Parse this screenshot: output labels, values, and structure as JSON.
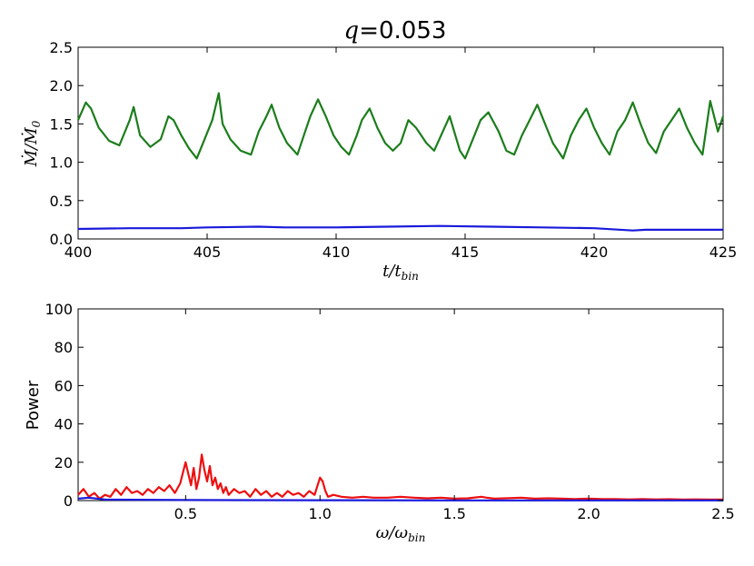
{
  "title": {
    "var": "q",
    "eq": "=",
    "value": "0.053"
  },
  "colors": {
    "green": "#1b7d1b",
    "blue": "#1a1adb",
    "red": "#ee0f0f"
  },
  "chart_data": [
    {
      "type": "line",
      "xlabel": {
        "base": "t/t",
        "sub": "bin"
      },
      "ylabel": {
        "base": "Ṁ/Ṁ",
        "sub": "0"
      },
      "xlim": [
        400,
        425
      ],
      "ylim": [
        0.0,
        2.5
      ],
      "xticks": [
        "400",
        "405",
        "410",
        "415",
        "420",
        "425"
      ],
      "yticks": [
        "0.0",
        "0.5",
        "1.0",
        "1.5",
        "2.0",
        "2.5"
      ],
      "series": [
        {
          "color": "green",
          "x": [
            400,
            400.3,
            400.5,
            400.8,
            401.2,
            401.6,
            402.0,
            402.15,
            402.4,
            402.8,
            403.2,
            403.5,
            403.7,
            404.0,
            404.3,
            404.6,
            404.9,
            405.2,
            405.45,
            405.6,
            405.9,
            406.3,
            406.7,
            407.0,
            407.3,
            407.5,
            407.8,
            408.1,
            408.5,
            408.8,
            409.0,
            409.3,
            409.6,
            409.9,
            410.2,
            410.5,
            410.8,
            411.0,
            411.3,
            411.6,
            411.9,
            412.2,
            412.5,
            412.8,
            413.1,
            413.5,
            413.8,
            414.0,
            414.4,
            414.8,
            415.0,
            415.3,
            415.6,
            415.9,
            416.3,
            416.6,
            416.9,
            417.2,
            417.5,
            417.8,
            418.1,
            418.4,
            418.8,
            419.1,
            419.4,
            419.7,
            420.0,
            420.3,
            420.6,
            420.9,
            421.2,
            421.5,
            421.8,
            422.1,
            422.4,
            422.7,
            423.0,
            423.3,
            423.6,
            423.9,
            424.2,
            424.5,
            424.8,
            425.0
          ],
          "y": [
            1.55,
            1.78,
            1.7,
            1.45,
            1.28,
            1.22,
            1.55,
            1.72,
            1.35,
            1.2,
            1.3,
            1.6,
            1.55,
            1.35,
            1.18,
            1.05,
            1.3,
            1.55,
            1.9,
            1.5,
            1.3,
            1.15,
            1.1,
            1.4,
            1.6,
            1.75,
            1.45,
            1.25,
            1.1,
            1.4,
            1.6,
            1.82,
            1.6,
            1.35,
            1.2,
            1.1,
            1.35,
            1.55,
            1.7,
            1.45,
            1.25,
            1.15,
            1.25,
            1.55,
            1.45,
            1.25,
            1.15,
            1.3,
            1.6,
            1.15,
            1.05,
            1.3,
            1.55,
            1.65,
            1.4,
            1.15,
            1.1,
            1.35,
            1.55,
            1.75,
            1.5,
            1.25,
            1.05,
            1.35,
            1.55,
            1.7,
            1.45,
            1.25,
            1.1,
            1.4,
            1.55,
            1.78,
            1.5,
            1.25,
            1.12,
            1.4,
            1.55,
            1.7,
            1.45,
            1.25,
            1.1,
            1.8,
            1.4,
            1.6
          ]
        },
        {
          "color": "blue",
          "x": [
            400,
            402,
            404,
            405,
            407,
            408,
            410,
            412,
            414,
            416,
            418,
            420,
            421.5,
            422,
            423,
            425
          ],
          "y": [
            0.13,
            0.14,
            0.14,
            0.15,
            0.16,
            0.15,
            0.15,
            0.16,
            0.17,
            0.16,
            0.15,
            0.14,
            0.11,
            0.12,
            0.12,
            0.12
          ]
        }
      ]
    },
    {
      "type": "line",
      "xlabel": {
        "base": "ω/ω",
        "sub": "bin"
      },
      "ylabel": "Power",
      "xlim": [
        0.1,
        2.5
      ],
      "ylim": [
        0,
        100
      ],
      "xticks": [
        "0.5",
        "1.0",
        "1.5",
        "2.0",
        "2.5"
      ],
      "yticks": [
        "0",
        "20",
        "40",
        "60",
        "80",
        "100"
      ],
      "series": [
        {
          "color": "red",
          "x": [
            0.1,
            0.12,
            0.14,
            0.16,
            0.18,
            0.2,
            0.22,
            0.24,
            0.26,
            0.28,
            0.3,
            0.32,
            0.34,
            0.36,
            0.38,
            0.4,
            0.42,
            0.44,
            0.46,
            0.48,
            0.5,
            0.51,
            0.52,
            0.53,
            0.54,
            0.55,
            0.56,
            0.57,
            0.58,
            0.59,
            0.6,
            0.61,
            0.62,
            0.63,
            0.64,
            0.65,
            0.66,
            0.68,
            0.7,
            0.72,
            0.74,
            0.76,
            0.78,
            0.8,
            0.82,
            0.84,
            0.86,
            0.88,
            0.9,
            0.92,
            0.94,
            0.96,
            0.98,
            1.0,
            1.01,
            1.02,
            1.03,
            1.05,
            1.08,
            1.12,
            1.16,
            1.2,
            1.25,
            1.3,
            1.35,
            1.4,
            1.45,
            1.5,
            1.55,
            1.6,
            1.62,
            1.65,
            1.7,
            1.75,
            1.8,
            1.85,
            1.9,
            1.95,
            2.0,
            2.05,
            2.1,
            2.15,
            2.2,
            2.25,
            2.3,
            2.35,
            2.4,
            2.45,
            2.5
          ],
          "y": [
            3,
            6,
            2,
            4,
            1,
            3,
            2,
            6,
            3,
            7,
            4,
            5,
            3,
            6,
            4,
            7,
            5,
            8,
            4,
            9,
            20,
            14,
            8,
            17,
            6,
            12,
            24,
            16,
            10,
            18,
            8,
            12,
            6,
            9,
            4,
            7,
            3,
            6,
            4,
            5,
            2,
            6,
            3,
            5,
            2,
            4,
            2,
            5,
            3,
            4,
            2,
            5,
            3,
            12,
            10,
            5,
            2,
            3,
            2,
            1.5,
            2,
            1.5,
            1.5,
            2,
            1.5,
            1.2,
            1.5,
            1,
            1.2,
            2,
            1.5,
            1,
            1.3,
            1.5,
            1,
            1.2,
            1,
            0.8,
            1,
            0.8,
            0.8,
            0.6,
            0.8,
            0.6,
            0.7,
            0.5,
            0.6,
            0.5,
            0.5
          ]
        },
        {
          "color": "blue",
          "x": [
            0.1,
            0.14,
            0.2,
            0.5,
            1.0,
            1.5,
            2.0,
            2.5
          ],
          "y": [
            1,
            1.5,
            0.5,
            0.3,
            0.2,
            0.1,
            0.1,
            0.1
          ]
        }
      ]
    }
  ]
}
